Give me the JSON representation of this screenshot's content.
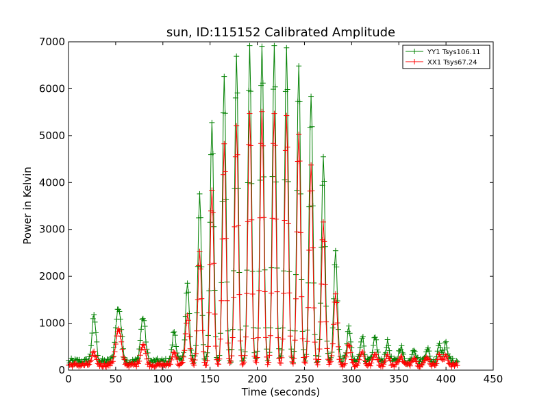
{
  "chart_data": {
    "type": "line",
    "title": "sun, ID:115152 Calibrated Amplitude",
    "xlabel": "Time (seconds)",
    "ylabel": "Power in Kelvin",
    "xlim": [
      0,
      450
    ],
    "ylim": [
      0,
      7000
    ],
    "x_ticks": [
      0,
      50,
      100,
      150,
      200,
      250,
      300,
      350,
      400,
      450
    ],
    "y_ticks": [
      0,
      1000,
      2000,
      3000,
      4000,
      5000,
      6000,
      7000
    ],
    "legend_position": "top-right",
    "grid": false,
    "marker": "+",
    "sample_interval_seconds": 1,
    "x_range_data": [
      0,
      412
    ],
    "series": [
      {
        "name": "YY1 Tsys106.11",
        "color": "#008000",
        "baseline": 180,
        "peaks": [
          {
            "t": 27,
            "amp": 950,
            "w": 2.2
          },
          {
            "t": 53,
            "amp": 1150,
            "w": 3.0
          },
          {
            "t": 79,
            "amp": 950,
            "w": 2.5
          },
          {
            "t": 112,
            "amp": 650,
            "w": 2.0
          },
          {
            "t": 126,
            "amp": 1650,
            "w": 2.0
          },
          {
            "t": 139,
            "amp": 3550,
            "w": 1.9
          },
          {
            "t": 152,
            "amp": 5100,
            "w": 1.9
          },
          {
            "t": 165,
            "amp": 6050,
            "w": 1.9
          },
          {
            "t": 178,
            "amp": 6500,
            "w": 1.9
          },
          {
            "t": 192,
            "amp": 6700,
            "w": 1.9
          },
          {
            "t": 205,
            "amp": 6750,
            "w": 1.9
          },
          {
            "t": 218,
            "amp": 6750,
            "w": 1.9
          },
          {
            "t": 231,
            "amp": 6650,
            "w": 1.9
          },
          {
            "t": 244,
            "amp": 6300,
            "w": 1.9
          },
          {
            "t": 257,
            "amp": 5700,
            "w": 1.9
          },
          {
            "t": 270,
            "amp": 4350,
            "w": 1.9
          },
          {
            "t": 283,
            "amp": 2350,
            "w": 1.9
          },
          {
            "t": 297,
            "amp": 700,
            "w": 2.0
          },
          {
            "t": 311,
            "amp": 550,
            "w": 2.0
          },
          {
            "t": 325,
            "amp": 500,
            "w": 2.0
          },
          {
            "t": 338,
            "amp": 400,
            "w": 2.0
          },
          {
            "t": 352,
            "amp": 330,
            "w": 2.0
          },
          {
            "t": 366,
            "amp": 300,
            "w": 2.0
          },
          {
            "t": 380,
            "amp": 300,
            "w": 2.0
          },
          {
            "t": 393,
            "amp": 400,
            "w": 2.0
          },
          {
            "t": 400,
            "amp": 380,
            "w": 2.0
          }
        ]
      },
      {
        "name": "XX1 Tsys67.24",
        "color": "#ff0000",
        "baseline": 110,
        "peaks": [
          {
            "t": 27,
            "amp": 250,
            "w": 2.2
          },
          {
            "t": 53,
            "amp": 750,
            "w": 3.0
          },
          {
            "t": 79,
            "amp": 450,
            "w": 2.5
          },
          {
            "t": 112,
            "amp": 300,
            "w": 2.0
          },
          {
            "t": 126,
            "amp": 1050,
            "w": 2.0
          },
          {
            "t": 139,
            "amp": 2400,
            "w": 1.9
          },
          {
            "t": 152,
            "amp": 3750,
            "w": 1.9
          },
          {
            "t": 165,
            "amp": 4700,
            "w": 1.9
          },
          {
            "t": 178,
            "amp": 5100,
            "w": 1.9
          },
          {
            "t": 192,
            "amp": 5350,
            "w": 1.9
          },
          {
            "t": 205,
            "amp": 5400,
            "w": 1.9
          },
          {
            "t": 218,
            "amp": 5400,
            "w": 1.9
          },
          {
            "t": 231,
            "amp": 5300,
            "w": 1.9
          },
          {
            "t": 244,
            "amp": 4950,
            "w": 1.9
          },
          {
            "t": 257,
            "amp": 4300,
            "w": 1.9
          },
          {
            "t": 270,
            "amp": 3050,
            "w": 1.9
          },
          {
            "t": 283,
            "amp": 1500,
            "w": 1.9
          },
          {
            "t": 297,
            "amp": 450,
            "w": 2.0
          },
          {
            "t": 311,
            "amp": 300,
            "w": 2.0
          },
          {
            "t": 325,
            "amp": 250,
            "w": 2.0
          },
          {
            "t": 338,
            "amp": 200,
            "w": 2.0
          },
          {
            "t": 352,
            "amp": 180,
            "w": 2.0
          },
          {
            "t": 366,
            "amp": 170,
            "w": 2.0
          },
          {
            "t": 380,
            "amp": 170,
            "w": 2.0
          },
          {
            "t": 393,
            "amp": 220,
            "w": 2.0
          },
          {
            "t": 400,
            "amp": 200,
            "w": 2.0
          }
        ]
      }
    ]
  }
}
